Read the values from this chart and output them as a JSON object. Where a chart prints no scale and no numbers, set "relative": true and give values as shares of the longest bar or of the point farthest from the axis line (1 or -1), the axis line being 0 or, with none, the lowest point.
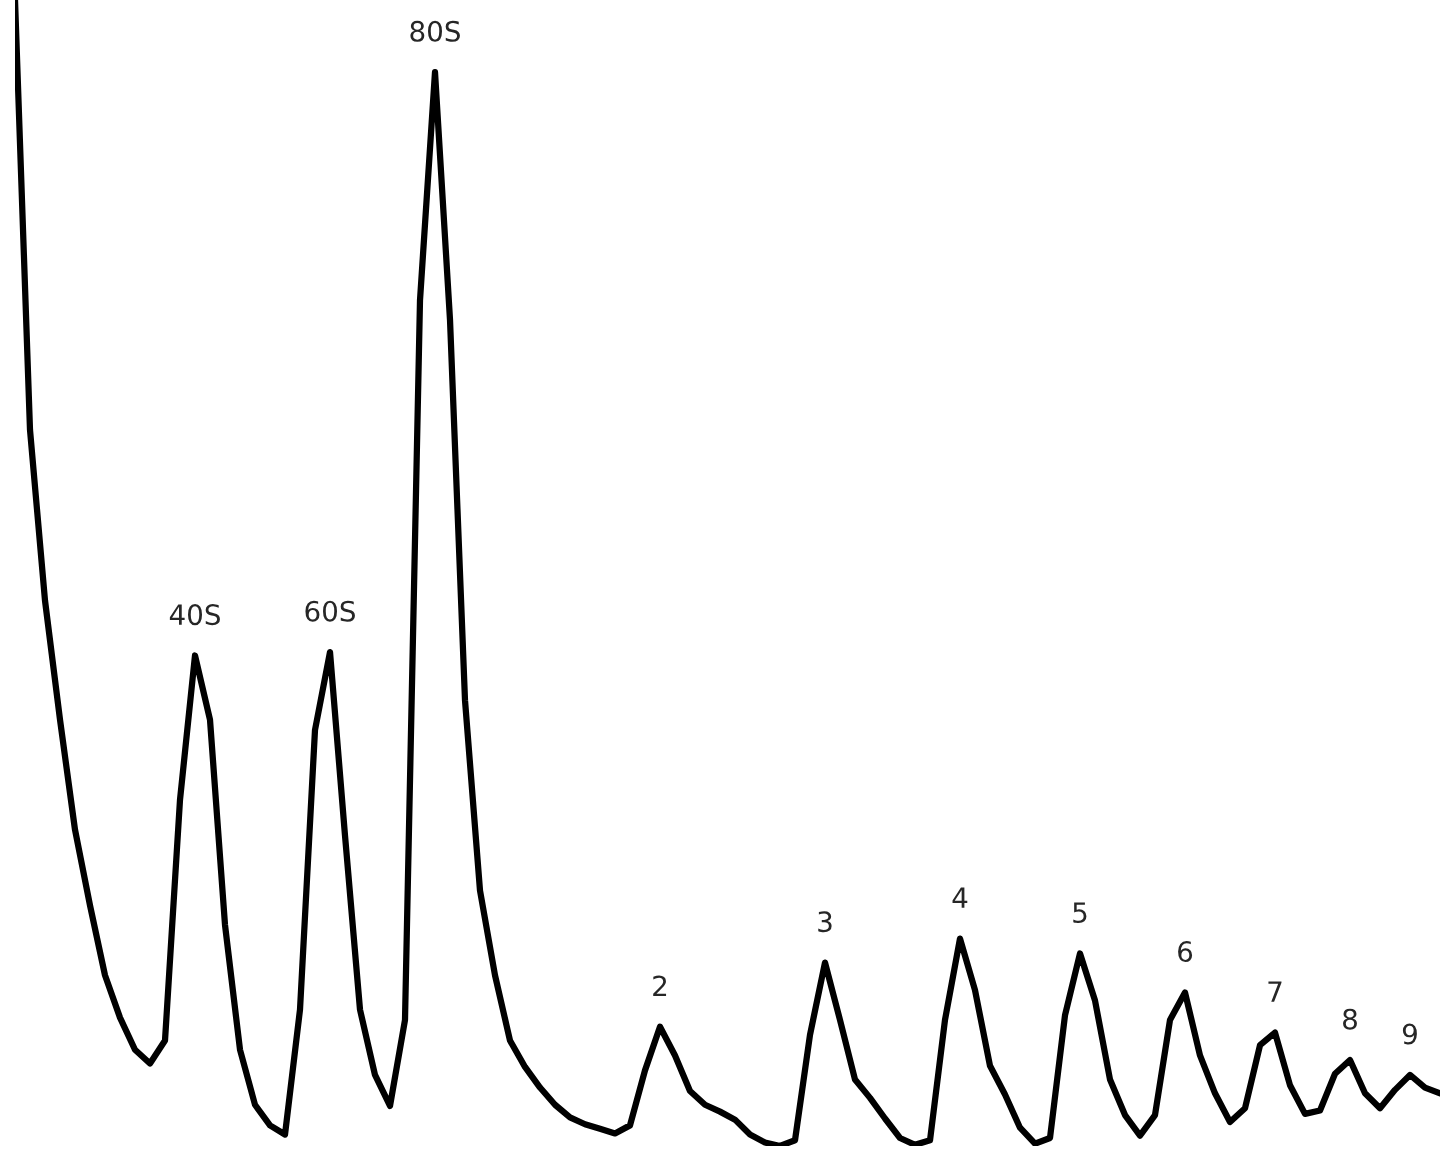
{
  "chart_data": {
    "type": "line",
    "relative": true,
    "categories": [
      null,
      null,
      null,
      null,
      null,
      null,
      null,
      null,
      null,
      null,
      null,
      null,
      null,
      null,
      null,
      null,
      null,
      null,
      null,
      null,
      null,
      null,
      null,
      null,
      null,
      null,
      null,
      null,
      null,
      null,
      null,
      null,
      null,
      null,
      null,
      null,
      null,
      null,
      null,
      null,
      null,
      null,
      null,
      null,
      null,
      null,
      null,
      null,
      null,
      null,
      null,
      null,
      null,
      null,
      null,
      null,
      null,
      null,
      null,
      null,
      null,
      null,
      null,
      null,
      null,
      null,
      null,
      null,
      null,
      null,
      null,
      null,
      null,
      null,
      null,
      null,
      null,
      null,
      null,
      null,
      null,
      null,
      null,
      null,
      null,
      null,
      null,
      null,
      null,
      null,
      null,
      null,
      null,
      null,
      null,
      null
    ],
    "series": [
      {
        "color": "#000000",
        "values": [
          1.0,
          0.625,
          0.476,
          0.372,
          0.276,
          0.21,
          0.149,
          0.112,
          0.084,
          0.072,
          0.092,
          0.302,
          0.428,
          0.372,
          0.193,
          0.084,
          0.036,
          0.018,
          0.01,
          0.119,
          0.363,
          0.431,
          0.271,
          0.119,
          0.062,
          0.035,
          0.11,
          0.738,
          0.937,
          0.721,
          0.389,
          0.223,
          0.149,
          0.092,
          0.069,
          0.051,
          0.036,
          0.025,
          0.019,
          0.015,
          0.011,
          0.018,
          0.066,
          0.104,
          0.079,
          0.048,
          0.036,
          0.03,
          0.023,
          0.01,
          0.003,
          0,
          0.005,
          0.097,
          0.16,
          0.11,
          0.058,
          0.042,
          0.024,
          0.007,
          0.001,
          0.005,
          0.11,
          0.181,
          0.136,
          0.07,
          0.045,
          0.016,
          0.002,
          0.007,
          0.114,
          0.168,
          0.127,
          0.058,
          0.027,
          0.009,
          0.027,
          0.11,
          0.134,
          0.079,
          0.046,
          0.021,
          0.033,
          0.088,
          0.099,
          0.053,
          0.028,
          0.031,
          0.063,
          0.075,
          0.046,
          0.033,
          0.049,
          0.062,
          0.051,
          0.046
        ]
      }
    ],
    "annotations": [
      "40S",
      "60S",
      "80S",
      "2",
      "3",
      "4",
      "5",
      "6",
      "7",
      "8",
      "9"
    ]
  }
}
